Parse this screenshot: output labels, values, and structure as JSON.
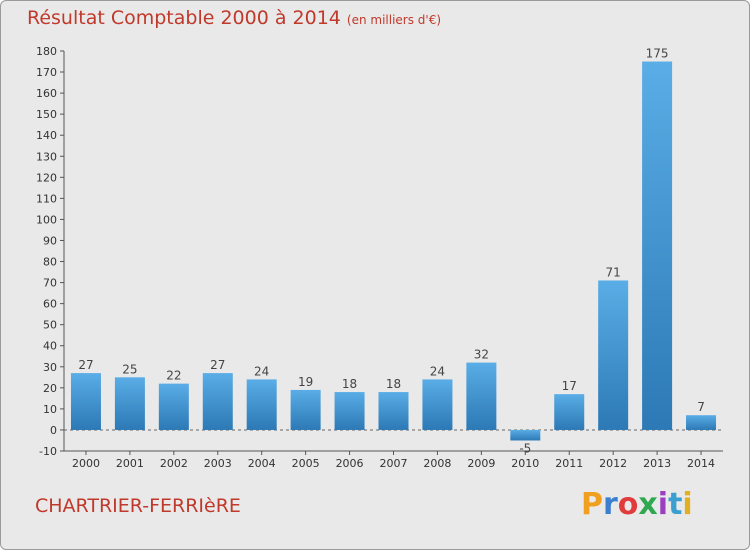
{
  "header": {
    "title": "Résultat Comptable 2000 à 2014",
    "subtitle": "(en milliers d'€)"
  },
  "footer": {
    "commune": "CHARTRIER-FERRIèRE",
    "logo_text": "Proxiti"
  },
  "colors": {
    "title": "#c0392b",
    "bar_top": "#5aade6",
    "bar_bottom": "#2c79b5",
    "background": "#e9e9e9"
  },
  "chart_data": {
    "type": "bar",
    "title": "Résultat Comptable 2000 à 2014",
    "subtitle": "(en milliers d'€)",
    "categories": [
      "2000",
      "2001",
      "2002",
      "2003",
      "2004",
      "2005",
      "2006",
      "2007",
      "2008",
      "2009",
      "2010",
      "2011",
      "2012",
      "2013",
      "2014"
    ],
    "values": [
      27,
      25,
      22,
      27,
      24,
      19,
      18,
      18,
      24,
      32,
      -5,
      17,
      71,
      175,
      7
    ],
    "ylim": [
      -10,
      180
    ],
    "yticks": [
      -10,
      0,
      10,
      20,
      30,
      40,
      50,
      60,
      70,
      80,
      90,
      100,
      110,
      120,
      130,
      140,
      150,
      160,
      170,
      180
    ],
    "grid": false,
    "data_labels": true
  }
}
